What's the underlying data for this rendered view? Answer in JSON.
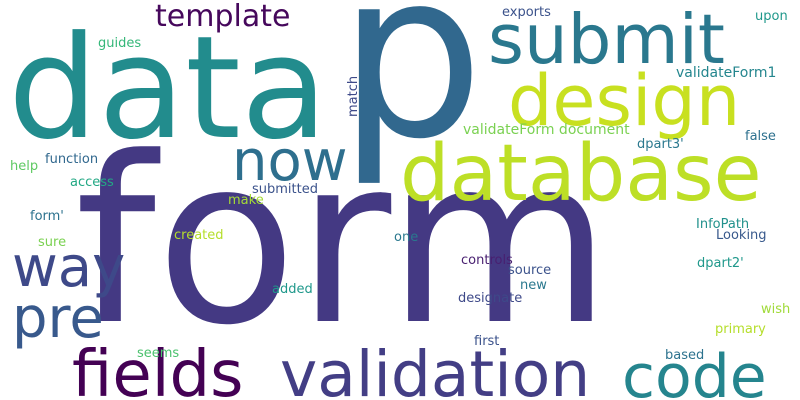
{
  "word_cloud": {
    "words": [
      {
        "key": "form",
        "text": "form",
        "color": "#443983"
      },
      {
        "key": "p",
        "text": "p",
        "color": "#31688e"
      },
      {
        "key": "data",
        "text": "data",
        "color": "#228c8d"
      },
      {
        "key": "database",
        "text": "database",
        "color": "#bddf26"
      },
      {
        "key": "validation",
        "text": "validation",
        "color": "#433e85"
      },
      {
        "key": "submit",
        "text": "submit",
        "color": "#2a788e"
      },
      {
        "key": "design",
        "text": "design",
        "color": "#c8e020"
      },
      {
        "key": "code",
        "text": "code",
        "color": "#25858e"
      },
      {
        "key": "fields",
        "text": "fields",
        "color": "#440154"
      },
      {
        "key": "now",
        "text": "now",
        "color": "#2e6f8e"
      },
      {
        "key": "way",
        "text": "way",
        "color": "#3e4989"
      },
      {
        "key": "pre",
        "text": "pre",
        "color": "#38598c"
      },
      {
        "key": "template",
        "text": "template",
        "color": "#46085c"
      },
      {
        "key": "validateForm_document",
        "text": "validateForm document",
        "color": "#7ad151"
      },
      {
        "key": "validateForm1",
        "text": "validateForm1",
        "color": "#24868e"
      },
      {
        "key": "exports",
        "text": "exports",
        "color": "#3b528b"
      },
      {
        "key": "upon",
        "text": "upon",
        "color": "#1f988b"
      },
      {
        "key": "guides",
        "text": "guides",
        "color": "#35b779"
      },
      {
        "key": "match",
        "text": "match",
        "color": "#3e4a89"
      },
      {
        "key": "false",
        "text": "false",
        "color": "#2d708e"
      },
      {
        "key": "dpart3",
        "text": "dpart3'",
        "color": "#2a788e"
      },
      {
        "key": "help",
        "text": "help",
        "color": "#5ec962"
      },
      {
        "key": "function",
        "text": "function",
        "color": "#31688e"
      },
      {
        "key": "access",
        "text": "access",
        "color": "#22a884"
      },
      {
        "key": "submitted",
        "text": "submitted",
        "color": "#3b528b"
      },
      {
        "key": "make",
        "text": "make",
        "color": "#a5db36"
      },
      {
        "key": "form_q",
        "text": "form'",
        "color": "#2c728e"
      },
      {
        "key": "created",
        "text": "created",
        "color": "#b5de2b"
      },
      {
        "key": "sure",
        "text": "sure",
        "color": "#7ad151"
      },
      {
        "key": "one",
        "text": "one",
        "color": "#2a788e"
      },
      {
        "key": "InfoPath",
        "text": "InfoPath",
        "color": "#21918c"
      },
      {
        "key": "Looking",
        "text": "Looking",
        "color": "#38598c"
      },
      {
        "key": "controls",
        "text": "controls",
        "color": "#481f70"
      },
      {
        "key": "source",
        "text": "source",
        "color": "#3b528b"
      },
      {
        "key": "dpart2",
        "text": "dpart2'",
        "color": "#1f988b"
      },
      {
        "key": "added",
        "text": "added",
        "color": "#1f988b"
      },
      {
        "key": "new",
        "text": "new",
        "color": "#2a788e"
      },
      {
        "key": "designate",
        "text": "designate",
        "color": "#3e4989"
      },
      {
        "key": "wish",
        "text": "wish",
        "color": "#a0da39"
      },
      {
        "key": "primary",
        "text": "primary",
        "color": "#b5de2b"
      },
      {
        "key": "first",
        "text": "first",
        "color": "#3b528b"
      },
      {
        "key": "seems",
        "text": "seems",
        "color": "#4ac16d"
      },
      {
        "key": "based",
        "text": "based",
        "color": "#2c728e"
      }
    ]
  }
}
